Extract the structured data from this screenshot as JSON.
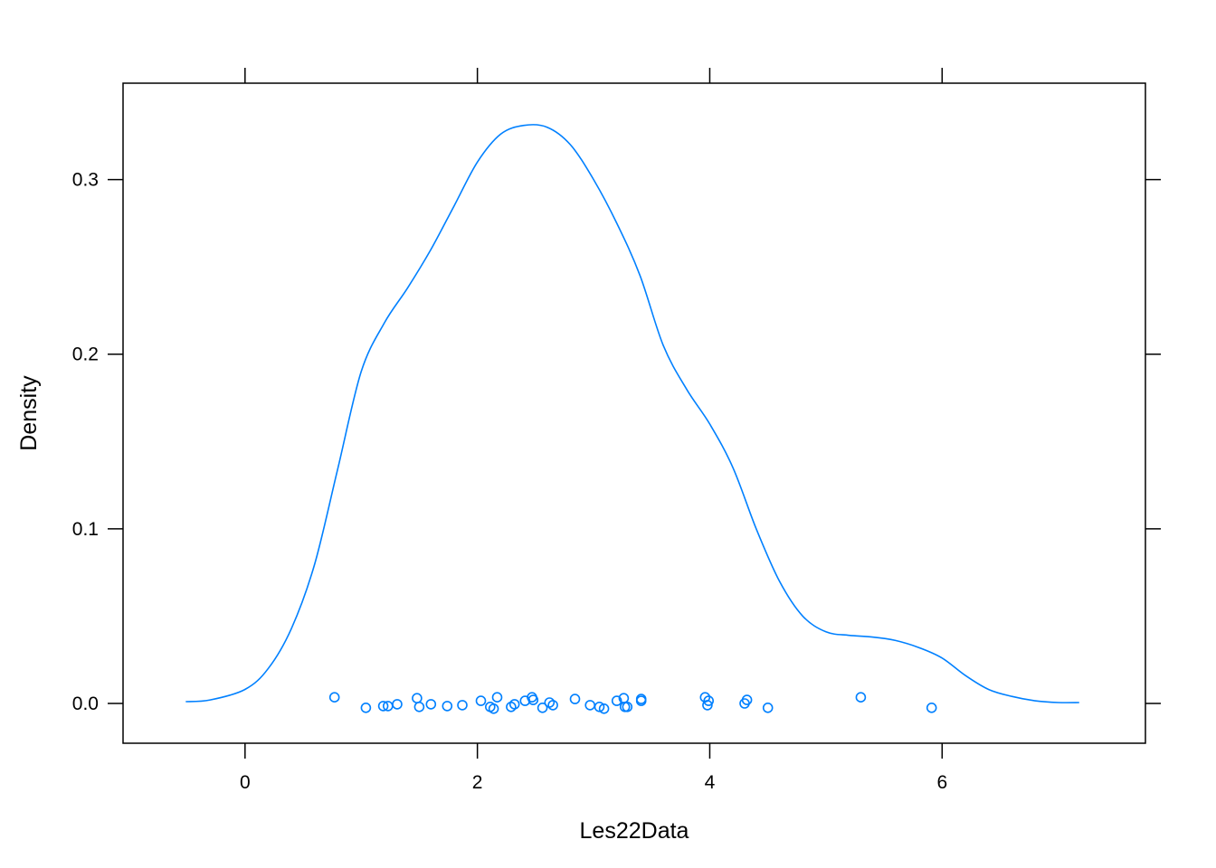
{
  "chart_data": {
    "type": "line",
    "title": "",
    "xlabel": "Les22Data",
    "ylabel": "Density",
    "xlim": [
      -1.05,
      7.75
    ],
    "ylim": [
      -0.0228,
      0.3552
    ],
    "x_ticks": [
      0,
      2,
      4,
      6
    ],
    "x_tick_labels": [
      "0",
      "2",
      "4",
      "6"
    ],
    "y_ticks": [
      0.0,
      0.1,
      0.2,
      0.3
    ],
    "y_tick_labels": [
      "0.0",
      "0.1",
      "0.2",
      "0.3"
    ],
    "grid": false,
    "colors": {
      "series": "#0080ff",
      "axis": "#000000"
    },
    "series": [
      {
        "kind": "density",
        "x": [
          -0.51,
          -0.3,
          0.0,
          0.2,
          0.4,
          0.6,
          0.8,
          1.0,
          1.2,
          1.4,
          1.6,
          1.8,
          2.0,
          2.2,
          2.4,
          2.6,
          2.8,
          3.0,
          3.2,
          3.4,
          3.6,
          3.8,
          4.0,
          4.2,
          4.4,
          4.6,
          4.8,
          5.0,
          5.2,
          5.4,
          5.6,
          5.8,
          6.0,
          6.2,
          6.4,
          6.6,
          6.8,
          7.0,
          7.18
        ],
        "y": [
          0.001,
          0.002,
          0.008,
          0.02,
          0.043,
          0.08,
          0.135,
          0.19,
          0.218,
          0.238,
          0.26,
          0.285,
          0.31,
          0.326,
          0.331,
          0.33,
          0.32,
          0.3,
          0.275,
          0.245,
          0.205,
          0.18,
          0.16,
          0.135,
          0.1,
          0.07,
          0.05,
          0.041,
          0.039,
          0.038,
          0.036,
          0.032,
          0.026,
          0.016,
          0.008,
          0.004,
          0.0015,
          0.0005,
          0.0005
        ]
      },
      {
        "kind": "points",
        "x": [
          0.77,
          1.04,
          1.19,
          1.23,
          1.31,
          1.48,
          1.5,
          1.6,
          1.74,
          1.87,
          2.03,
          2.11,
          2.14,
          2.17,
          2.29,
          2.32,
          2.41,
          2.47,
          2.48,
          2.56,
          2.62,
          2.65,
          2.84,
          2.97,
          3.05,
          3.09,
          3.2,
          3.26,
          3.27,
          3.29,
          3.41,
          3.41,
          3.96,
          3.98,
          3.99,
          4.3,
          4.32,
          4.5,
          5.3,
          5.91
        ],
        "y": [
          0.0035,
          -0.0025,
          -0.0015,
          -0.0015,
          -0.0005,
          0.003,
          -0.002,
          -0.0005,
          -0.0015,
          -0.001,
          0.0015,
          -0.002,
          -0.003,
          0.0035,
          -0.002,
          -0.0005,
          0.0015,
          0.0035,
          0.002,
          -0.0025,
          0.0005,
          -0.001,
          0.0025,
          -0.001,
          -0.002,
          -0.003,
          0.0015,
          0.003,
          -0.002,
          -0.002,
          0.0025,
          0.0015,
          0.0035,
          -0.001,
          0.0015,
          0.0,
          0.002,
          -0.0025,
          0.0035,
          -0.0025
        ]
      }
    ]
  }
}
